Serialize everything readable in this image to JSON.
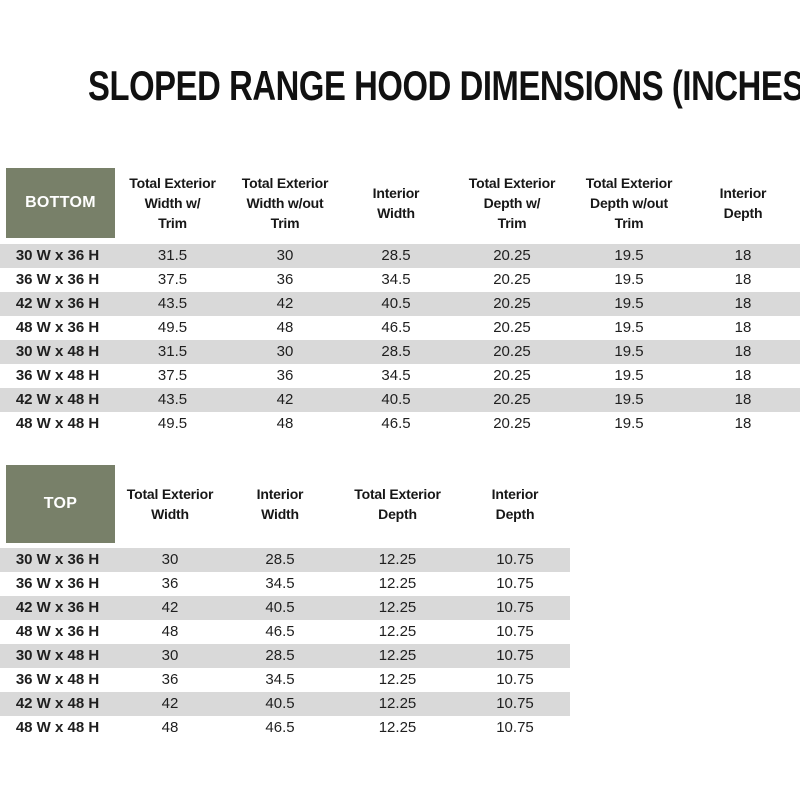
{
  "title": "SLOPED RANGE HOOD DIMENSIONS (INCHES)",
  "colors": {
    "header_cell_green": "#788069",
    "row_shade_gray": "#d9d9d9",
    "header_text_white": "#ffffff",
    "body_text": "#1f1f1f"
  },
  "bottom_table": {
    "label": "BOTTOM",
    "columns": [
      [
        "Total Exterior",
        "Width w/",
        "Trim"
      ],
      [
        "Total Exterior",
        "Width w/out",
        "Trim"
      ],
      [
        "Interior",
        "Width"
      ],
      [
        "Total Exterior",
        "Depth w/",
        "Trim"
      ],
      [
        "Total Exterior",
        "Depth w/out",
        "Trim"
      ],
      [
        "Interior",
        "Depth"
      ]
    ],
    "rows": [
      [
        "30 W x 36 H",
        "31.5",
        "30",
        "28.5",
        "20.25",
        "19.5",
        "18"
      ],
      [
        "36 W x 36 H",
        "37.5",
        "36",
        "34.5",
        "20.25",
        "19.5",
        "18"
      ],
      [
        "42 W x 36 H",
        "43.5",
        "42",
        "40.5",
        "20.25",
        "19.5",
        "18"
      ],
      [
        "48 W x 36 H",
        "49.5",
        "48",
        "46.5",
        "20.25",
        "19.5",
        "18"
      ],
      [
        "30 W x 48 H",
        "31.5",
        "30",
        "28.5",
        "20.25",
        "19.5",
        "18"
      ],
      [
        "36 W x 48 H",
        "37.5",
        "36",
        "34.5",
        "20.25",
        "19.5",
        "18"
      ],
      [
        "42 W x 48 H",
        "43.5",
        "42",
        "40.5",
        "20.25",
        "19.5",
        "18"
      ],
      [
        "48 W x 48 H",
        "49.5",
        "48",
        "46.5",
        "20.25",
        "19.5",
        "18"
      ]
    ]
  },
  "top_table": {
    "label": "TOP",
    "columns": [
      [
        "Total Exterior",
        "Width"
      ],
      [
        "Interior",
        "Width"
      ],
      [
        "Total Exterior",
        "Depth"
      ],
      [
        "Interior",
        "Depth"
      ]
    ],
    "rows": [
      [
        "30 W x 36 H",
        "30",
        "28.5",
        "12.25",
        "10.75"
      ],
      [
        "36 W x 36 H",
        "36",
        "34.5",
        "12.25",
        "10.75"
      ],
      [
        "42 W x 36 H",
        "42",
        "40.5",
        "12.25",
        "10.75"
      ],
      [
        "48 W x 36 H",
        "48",
        "46.5",
        "12.25",
        "10.75"
      ],
      [
        "30 W x 48 H",
        "30",
        "28.5",
        "12.25",
        "10.75"
      ],
      [
        "36 W x 48 H",
        "36",
        "34.5",
        "12.25",
        "10.75"
      ],
      [
        "42 W x 48 H",
        "42",
        "40.5",
        "12.25",
        "10.75"
      ],
      [
        "48 W x 48 H",
        "48",
        "46.5",
        "12.25",
        "10.75"
      ]
    ]
  }
}
